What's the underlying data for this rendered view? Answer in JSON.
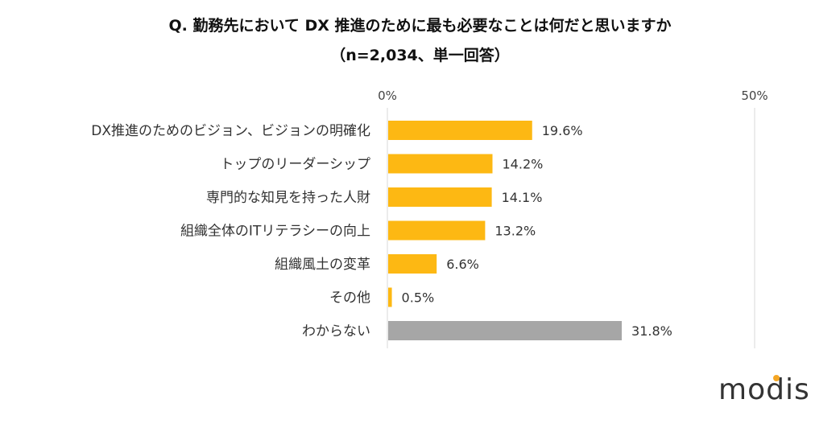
{
  "title": "Q. 勤務先において DX 推進のために最も必要なことは何だと思いますか",
  "subtitle": "（n=2,034、単一回答）",
  "brand": {
    "name": "modis",
    "accent_color": "#F5A623"
  },
  "colors": {
    "primary_bar": "#FDB813",
    "other_bar": "#A6A6A6",
    "grid": "#D9D9D9"
  },
  "chart_data": {
    "type": "bar",
    "orientation": "horizontal",
    "title": "Q. 勤務先において DX 推進のために最も必要なことは何だと思いますか",
    "subtitle": "（n=2,034、単一回答）",
    "categories": [
      "DX推進のためのビジョン、ビジョンの明確化",
      "トップのリーダーシップ",
      "専門的な知見を持った人財",
      "組織全体のITリテラシーの向上",
      "組織風土の変革",
      "その他",
      "わからない"
    ],
    "values": [
      19.6,
      14.2,
      14.1,
      13.2,
      6.6,
      0.5,
      31.8
    ],
    "data_labels": [
      "19.6%",
      "14.2%",
      "14.1%",
      "13.2%",
      "6.6%",
      "0.5%",
      "31.8%"
    ],
    "unit": "%",
    "xlim": [
      0,
      50
    ],
    "ticks": [
      {
        "value": 0,
        "label": "0%"
      },
      {
        "value": 50,
        "label": "50%"
      }
    ],
    "grid": true,
    "legend": "none"
  }
}
